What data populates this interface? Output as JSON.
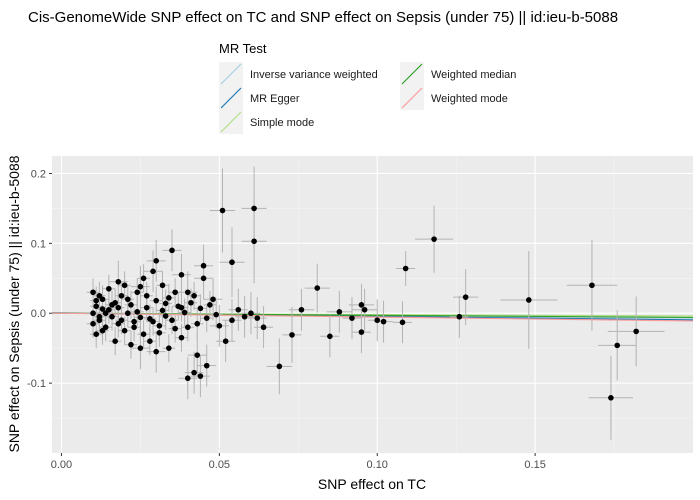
{
  "chart_data": {
    "type": "scatter",
    "title": "Cis-GenomeWide SNP effect on TC and SNP effect on Sepsis (under 75) || id:ieu-b-5088",
    "xlabel": "SNP effect on TC",
    "ylabel": "SNP effect on Sepsis (under 75) || id:ieu-b-5088",
    "xlim": [
      -0.003,
      0.2
    ],
    "ylim": [
      -0.2,
      0.225
    ],
    "x_ticks": [
      0.0,
      0.05,
      0.1,
      0.15
    ],
    "x_tick_labels": [
      "0.00",
      "0.05",
      "0.10",
      "0.15"
    ],
    "y_ticks": [
      -0.1,
      0.0,
      0.1,
      0.2
    ],
    "y_tick_labels": [
      "-0.1",
      "0.0",
      "0.1",
      "0.2"
    ],
    "grid": true,
    "legend": {
      "title": "MR Test",
      "position": "top",
      "entries": [
        {
          "name": "Inverse variance weighted",
          "color": "#a6cee3"
        },
        {
          "name": "MR Egger",
          "color": "#1f78b4"
        },
        {
          "name": "Simple mode",
          "color": "#b2df8a"
        },
        {
          "name": "Weighted median",
          "color": "#33a02c"
        },
        {
          "name": "Weighted mode",
          "color": "#fb9a99"
        }
      ]
    },
    "lines": [
      {
        "name": "Inverse variance weighted",
        "color": "#a6cee3",
        "intercept": 0,
        "slope": -0.035
      },
      {
        "name": "MR Egger",
        "color": "#1f78b4",
        "intercept": 0.0005,
        "slope": -0.05
      },
      {
        "name": "Simple mode",
        "color": "#b2df8a",
        "intercept": 0,
        "slope": -0.02
      },
      {
        "name": "Weighted median",
        "color": "#33a02c",
        "intercept": 0,
        "slope": -0.03
      },
      {
        "name": "Weighted mode",
        "color": "#fb9a99",
        "intercept": 0,
        "slope": -0.055
      }
    ],
    "points": [
      {
        "x": 0.051,
        "y": 0.147,
        "xerr": 0.004,
        "yerr": 0.06
      },
      {
        "x": 0.061,
        "y": 0.15,
        "xerr": 0.004,
        "yerr": 0.06
      },
      {
        "x": 0.061,
        "y": 0.103,
        "xerr": 0.004,
        "yerr": 0.06
      },
      {
        "x": 0.054,
        "y": 0.073,
        "xerr": 0.004,
        "yerr": 0.05
      },
      {
        "x": 0.118,
        "y": 0.106,
        "xerr": 0.006,
        "yerr": 0.048
      },
      {
        "x": 0.109,
        "y": 0.064,
        "xerr": 0.003,
        "yerr": 0.025
      },
      {
        "x": 0.081,
        "y": 0.036,
        "xerr": 0.004,
        "yerr": 0.035
      },
      {
        "x": 0.148,
        "y": 0.019,
        "xerr": 0.009,
        "yerr": 0.07
      },
      {
        "x": 0.168,
        "y": 0.04,
        "xerr": 0.008,
        "yerr": 0.065
      },
      {
        "x": 0.128,
        "y": 0.023,
        "xerr": 0.004,
        "yerr": 0.04
      },
      {
        "x": 0.126,
        "y": -0.005,
        "xerr": 0.003,
        "yerr": 0.03
      },
      {
        "x": 0.095,
        "y": 0.012,
        "xerr": 0.004,
        "yerr": 0.03
      },
      {
        "x": 0.096,
        "y": 0.005,
        "xerr": 0.004,
        "yerr": 0.03
      },
      {
        "x": 0.088,
        "y": 0.002,
        "xerr": 0.004,
        "yerr": 0.03
      },
      {
        "x": 0.092,
        "y": -0.007,
        "xerr": 0.003,
        "yerr": 0.03
      },
      {
        "x": 0.1,
        "y": -0.01,
        "xerr": 0.003,
        "yerr": 0.03
      },
      {
        "x": 0.102,
        "y": -0.012,
        "xerr": 0.003,
        "yerr": 0.03
      },
      {
        "x": 0.108,
        "y": -0.013,
        "xerr": 0.003,
        "yerr": 0.03
      },
      {
        "x": 0.085,
        "y": -0.033,
        "xerr": 0.003,
        "yerr": 0.03
      },
      {
        "x": 0.076,
        "y": 0.005,
        "xerr": 0.004,
        "yerr": 0.03
      },
      {
        "x": 0.073,
        "y": -0.031,
        "xerr": 0.003,
        "yerr": 0.04
      },
      {
        "x": 0.069,
        "y": -0.076,
        "xerr": 0.004,
        "yerr": 0.04
      },
      {
        "x": 0.095,
        "y": -0.027,
        "xerr": 0.003,
        "yerr": 0.03
      },
      {
        "x": 0.182,
        "y": -0.026,
        "xerr": 0.009,
        "yerr": 0.05
      },
      {
        "x": 0.176,
        "y": -0.046,
        "xerr": 0.006,
        "yerr": 0.05
      },
      {
        "x": 0.174,
        "y": -0.121,
        "xerr": 0.007,
        "yerr": 0.06
      },
      {
        "x": 0.035,
        "y": 0.09,
        "xerr": 0.003,
        "yerr": 0.03
      },
      {
        "x": 0.03,
        "y": 0.075,
        "xerr": 0.003,
        "yerr": 0.03
      },
      {
        "x": 0.045,
        "y": 0.068,
        "xerr": 0.003,
        "yerr": 0.03
      },
      {
        "x": 0.045,
        "y": 0.05,
        "xerr": 0.003,
        "yerr": 0.03
      },
      {
        "x": 0.029,
        "y": 0.06,
        "xerr": 0.003,
        "yerr": 0.03
      },
      {
        "x": 0.038,
        "y": 0.055,
        "xerr": 0.003,
        "yerr": 0.03
      },
      {
        "x": 0.018,
        "y": 0.045,
        "xerr": 0.003,
        "yerr": 0.03
      },
      {
        "x": 0.025,
        "y": 0.038,
        "xerr": 0.003,
        "yerr": 0.03
      },
      {
        "x": 0.04,
        "y": 0.03,
        "xerr": 0.003,
        "yerr": 0.03
      },
      {
        "x": 0.042,
        "y": -0.085,
        "xerr": 0.003,
        "yerr": 0.03
      },
      {
        "x": 0.04,
        "y": -0.093,
        "xerr": 0.003,
        "yerr": 0.03
      },
      {
        "x": 0.043,
        "y": -0.06,
        "xerr": 0.003,
        "yerr": 0.03
      },
      {
        "x": 0.044,
        "y": -0.09,
        "xerr": 0.003,
        "yerr": 0.03
      },
      {
        "x": 0.046,
        "y": -0.075,
        "xerr": 0.003,
        "yerr": 0.03
      },
      {
        "x": 0.03,
        "y": -0.055,
        "xerr": 0.003,
        "yerr": 0.03
      },
      {
        "x": 0.025,
        "y": -0.05,
        "xerr": 0.003,
        "yerr": 0.03
      },
      {
        "x": 0.052,
        "y": -0.04,
        "xerr": 0.003,
        "yerr": 0.03
      },
      {
        "x": 0.054,
        "y": -0.01,
        "xerr": 0.003,
        "yerr": 0.03
      },
      {
        "x": 0.056,
        "y": 0.005,
        "xerr": 0.003,
        "yerr": 0.03
      },
      {
        "x": 0.058,
        "y": -0.005,
        "xerr": 0.003,
        "yerr": 0.03
      },
      {
        "x": 0.06,
        "y": 0.0,
        "xerr": 0.003,
        "yerr": 0.03
      },
      {
        "x": 0.062,
        "y": -0.007,
        "xerr": 0.003,
        "yerr": 0.03
      },
      {
        "x": 0.064,
        "y": -0.02,
        "xerr": 0.003,
        "yerr": 0.03
      },
      {
        "x": 0.048,
        "y": 0.02,
        "xerr": 0.003,
        "yerr": 0.03
      },
      {
        "x": 0.05,
        "y": -0.018,
        "xerr": 0.003,
        "yerr": 0.03
      },
      {
        "x": 0.01,
        "y": 0.0,
        "xerr": 0.002,
        "yerr": 0.02
      },
      {
        "x": 0.011,
        "y": 0.01,
        "xerr": 0.002,
        "yerr": 0.02
      },
      {
        "x": 0.012,
        "y": -0.01,
        "xerr": 0.002,
        "yerr": 0.02
      },
      {
        "x": 0.013,
        "y": 0.02,
        "xerr": 0.002,
        "yerr": 0.02
      },
      {
        "x": 0.014,
        "y": -0.02,
        "xerr": 0.002,
        "yerr": 0.02
      },
      {
        "x": 0.015,
        "y": 0.005,
        "xerr": 0.002,
        "yerr": 0.02
      },
      {
        "x": 0.016,
        "y": -0.005,
        "xerr": 0.002,
        "yerr": 0.02
      },
      {
        "x": 0.017,
        "y": 0.015,
        "xerr": 0.002,
        "yerr": 0.02
      },
      {
        "x": 0.018,
        "y": -0.015,
        "xerr": 0.002,
        "yerr": 0.02
      },
      {
        "x": 0.019,
        "y": 0.025,
        "xerr": 0.002,
        "yerr": 0.02
      },
      {
        "x": 0.02,
        "y": -0.025,
        "xerr": 0.002,
        "yerr": 0.02
      },
      {
        "x": 0.021,
        "y": 0.0,
        "xerr": 0.002,
        "yerr": 0.02
      },
      {
        "x": 0.022,
        "y": 0.012,
        "xerr": 0.002,
        "yerr": 0.02
      },
      {
        "x": 0.023,
        "y": -0.012,
        "xerr": 0.002,
        "yerr": 0.02
      },
      {
        "x": 0.024,
        "y": 0.03,
        "xerr": 0.002,
        "yerr": 0.02
      },
      {
        "x": 0.026,
        "y": -0.03,
        "xerr": 0.002,
        "yerr": 0.02
      },
      {
        "x": 0.027,
        "y": 0.008,
        "xerr": 0.002,
        "yerr": 0.02
      },
      {
        "x": 0.028,
        "y": -0.008,
        "xerr": 0.002,
        "yerr": 0.02
      },
      {
        "x": 0.03,
        "y": 0.018,
        "xerr": 0.002,
        "yerr": 0.02
      },
      {
        "x": 0.031,
        "y": -0.018,
        "xerr": 0.002,
        "yerr": 0.02
      },
      {
        "x": 0.032,
        "y": 0.004,
        "xerr": 0.002,
        "yerr": 0.02
      },
      {
        "x": 0.033,
        "y": -0.004,
        "xerr": 0.002,
        "yerr": 0.02
      },
      {
        "x": 0.034,
        "y": 0.022,
        "xerr": 0.002,
        "yerr": 0.02
      },
      {
        "x": 0.036,
        "y": -0.022,
        "xerr": 0.002,
        "yerr": 0.02
      },
      {
        "x": 0.037,
        "y": 0.01,
        "xerr": 0.002,
        "yerr": 0.02
      },
      {
        "x": 0.038,
        "y": -0.035,
        "xerr": 0.002,
        "yerr": 0.02
      },
      {
        "x": 0.039,
        "y": 0.001,
        "xerr": 0.002,
        "yerr": 0.02
      },
      {
        "x": 0.041,
        "y": 0.015,
        "xerr": 0.002,
        "yerr": 0.02
      },
      {
        "x": 0.043,
        "y": -0.015,
        "xerr": 0.002,
        "yerr": 0.02
      },
      {
        "x": 0.044,
        "y": 0.007,
        "xerr": 0.002,
        "yerr": 0.02
      },
      {
        "x": 0.046,
        "y": -0.007,
        "xerr": 0.002,
        "yerr": 0.02
      },
      {
        "x": 0.047,
        "y": 0.012,
        "xerr": 0.002,
        "yerr": 0.02
      },
      {
        "x": 0.049,
        "y": -0.002,
        "xerr": 0.002,
        "yerr": 0.02
      },
      {
        "x": 0.01,
        "y": 0.03,
        "xerr": 0.002,
        "yerr": 0.02
      },
      {
        "x": 0.011,
        "y": -0.03,
        "xerr": 0.002,
        "yerr": 0.02
      },
      {
        "x": 0.012,
        "y": 0.025,
        "xerr": 0.002,
        "yerr": 0.02
      },
      {
        "x": 0.013,
        "y": -0.025,
        "xerr": 0.002,
        "yerr": 0.02
      },
      {
        "x": 0.015,
        "y": 0.035,
        "xerr": 0.002,
        "yerr": 0.02
      },
      {
        "x": 0.017,
        "y": -0.04,
        "xerr": 0.002,
        "yerr": 0.02
      },
      {
        "x": 0.02,
        "y": 0.04,
        "xerr": 0.002,
        "yerr": 0.02
      },
      {
        "x": 0.022,
        "y": -0.045,
        "xerr": 0.002,
        "yerr": 0.02
      },
      {
        "x": 0.026,
        "y": 0.05,
        "xerr": 0.002,
        "yerr": 0.02
      },
      {
        "x": 0.028,
        "y": -0.04,
        "xerr": 0.002,
        "yerr": 0.02
      },
      {
        "x": 0.032,
        "y": 0.04,
        "xerr": 0.002,
        "yerr": 0.02
      },
      {
        "x": 0.034,
        "y": -0.05,
        "xerr": 0.002,
        "yerr": 0.02
      },
      {
        "x": 0.036,
        "y": 0.03,
        "xerr": 0.002,
        "yerr": 0.02
      },
      {
        "x": 0.018,
        "y": 0.008,
        "xerr": 0.002,
        "yerr": 0.02
      },
      {
        "x": 0.014,
        "y": 0.0,
        "xerr": 0.002,
        "yerr": 0.02
      },
      {
        "x": 0.016,
        "y": 0.012,
        "xerr": 0.002,
        "yerr": 0.02
      },
      {
        "x": 0.019,
        "y": -0.01,
        "xerr": 0.002,
        "yerr": 0.02
      },
      {
        "x": 0.024,
        "y": 0.002,
        "xerr": 0.002,
        "yerr": 0.02
      },
      {
        "x": 0.029,
        "y": -0.012,
        "xerr": 0.002,
        "yerr": 0.02
      },
      {
        "x": 0.033,
        "y": 0.014,
        "xerr": 0.002,
        "yerr": 0.02
      },
      {
        "x": 0.035,
        "y": -0.01,
        "xerr": 0.002,
        "yerr": 0.02
      },
      {
        "x": 0.021,
        "y": 0.02,
        "xerr": 0.002,
        "yerr": 0.02
      },
      {
        "x": 0.023,
        "y": -0.02,
        "xerr": 0.002,
        "yerr": 0.02
      },
      {
        "x": 0.027,
        "y": 0.025,
        "xerr": 0.002,
        "yerr": 0.02
      },
      {
        "x": 0.031,
        "y": -0.028,
        "xerr": 0.002,
        "yerr": 0.02
      },
      {
        "x": 0.01,
        "y": -0.015,
        "xerr": 0.002,
        "yerr": 0.02
      },
      {
        "x": 0.011,
        "y": 0.018,
        "xerr": 0.002,
        "yerr": 0.02
      },
      {
        "x": 0.012,
        "y": -0.005,
        "xerr": 0.002,
        "yerr": 0.02
      },
      {
        "x": 0.013,
        "y": 0.006,
        "xerr": 0.002,
        "yerr": 0.02
      },
      {
        "x": 0.025,
        "y": -0.006,
        "xerr": 0.002,
        "yerr": 0.02
      },
      {
        "x": 0.04,
        "y": -0.02,
        "xerr": 0.002,
        "yerr": 0.02
      },
      {
        "x": 0.042,
        "y": 0.025,
        "xerr": 0.002,
        "yerr": 0.02
      },
      {
        "x": 0.038,
        "y": 0.008,
        "xerr": 0.002,
        "yerr": 0.02
      }
    ]
  }
}
